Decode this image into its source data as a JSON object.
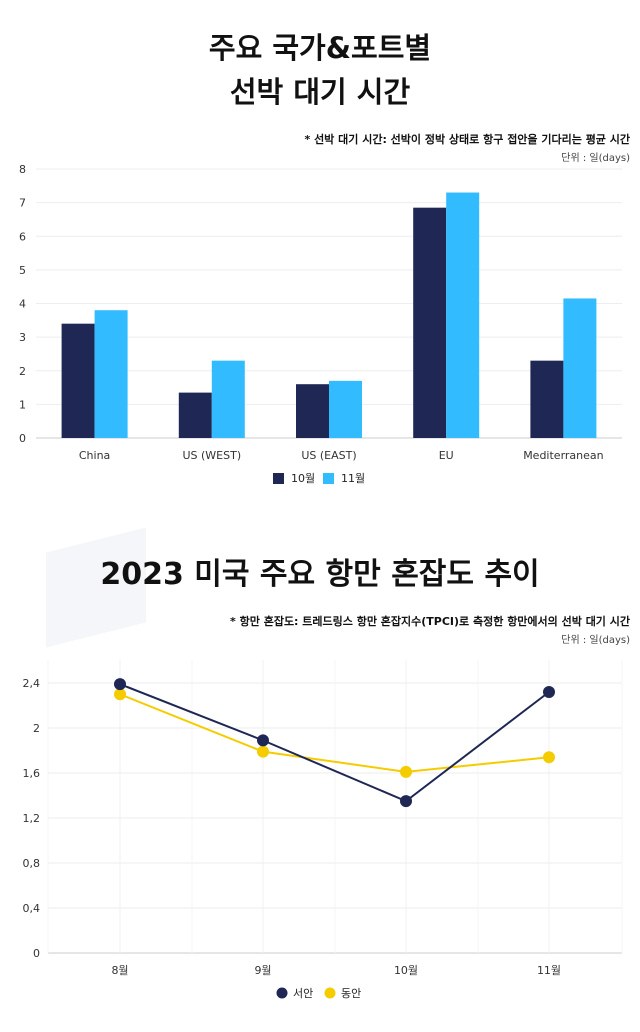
{
  "chart1": {
    "title_line1": "주요 국가&포트별",
    "title_line2": "선박 대기 시간",
    "note": "* 선박 대기 시간: 선박이 정박 상태로 항구 접안을 기다리는 평균 시간",
    "unit": "단위 : 일(days)"
  },
  "chart2": {
    "title": "2023 미국 주요 항만 혼잡도 추이",
    "note": "* 항만 혼잡도: 트레드링스 항만 혼잡지수(TPCI)로 측정한 항만에서의 선박 대기 시간",
    "unit": "단위 : 일(days)"
  },
  "colors": {
    "oct": "#1f2855",
    "nov": "#33bbff",
    "west": "#1f2855",
    "east": "#f5cc00"
  },
  "chart_data": [
    {
      "type": "bar",
      "title": "주요 국가&포트별 선박 대기 시간",
      "categories": [
        "China",
        "US (WEST)",
        "US (EAST)",
        "EU",
        "Mediterranean"
      ],
      "series": [
        {
          "name": "10월",
          "values": [
            3.4,
            1.35,
            1.6,
            6.85,
            2.3
          ]
        },
        {
          "name": "11월",
          "values": [
            3.8,
            2.3,
            1.7,
            7.3,
            4.15
          ]
        }
      ],
      "ylim": [
        0,
        8
      ],
      "yticks": [
        "0",
        "1",
        "2",
        "3",
        "4",
        "5",
        "6",
        "7",
        "8"
      ],
      "legend": "bottom",
      "grid": true
    },
    {
      "type": "line",
      "title": "2023 미국 주요 항만 혼잡도 추이",
      "categories": [
        "8월",
        "9월",
        "10월",
        "11월"
      ],
      "series": [
        {
          "name": "서안",
          "values": [
            2.39,
            1.89,
            1.35,
            2.32
          ]
        },
        {
          "name": "동안",
          "values": [
            2.3,
            1.79,
            1.61,
            1.74
          ]
        }
      ],
      "ylim": [
        0,
        2.6
      ],
      "yticks": [
        "0",
        "0,4",
        "0,8",
        "1,2",
        "1,6",
        "2",
        "2,4"
      ],
      "legend": "bottom",
      "grid": true
    }
  ]
}
